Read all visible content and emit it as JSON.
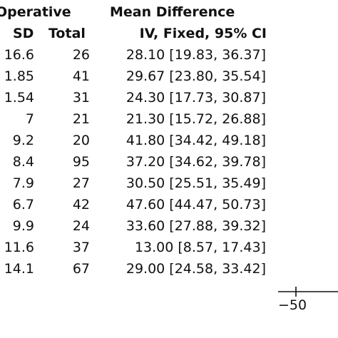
{
  "table": {
    "header_group": "Operative",
    "header_sd": "SD",
    "header_total": "Total",
    "header_md_title": "Mean Difference",
    "header_md_sub": "IV, Fixed, 95% CI"
  },
  "chart_data": {
    "type": "table",
    "columns": [
      "SD",
      "Total",
      "Mean Difference IV, Fixed, 95% CI"
    ],
    "rows": [
      {
        "sd": "16.6",
        "total": "26",
        "md": "28.10 [19.83, 36.37]",
        "mean": 28.1,
        "ci": [
          19.83,
          36.37
        ]
      },
      {
        "sd": "1.85",
        "total": "41",
        "md": "29.67 [23.80, 35.54]",
        "mean": 29.67,
        "ci": [
          23.8,
          35.54
        ]
      },
      {
        "sd": "1.54",
        "total": "31",
        "md": "24.30 [17.73, 30.87]",
        "mean": 24.3,
        "ci": [
          17.73,
          30.87
        ]
      },
      {
        "sd": "7",
        "total": "21",
        "md": "21.30 [15.72, 26.88]",
        "mean": 21.3,
        "ci": [
          15.72,
          26.88
        ]
      },
      {
        "sd": "9.2",
        "total": "20",
        "md": "41.80 [34.42, 49.18]",
        "mean": 41.8,
        "ci": [
          34.42,
          49.18
        ]
      },
      {
        "sd": "8.4",
        "total": "95",
        "md": "37.20 [34.62, 39.78]",
        "mean": 37.2,
        "ci": [
          34.62,
          39.78
        ]
      },
      {
        "sd": "7.9",
        "total": "27",
        "md": "30.50 [25.51, 35.49]",
        "mean": 30.5,
        "ci": [
          25.51,
          35.49
        ]
      },
      {
        "sd": "6.7",
        "total": "42",
        "md": "47.60 [44.47, 50.73]",
        "mean": 47.6,
        "ci": [
          44.47,
          50.73
        ]
      },
      {
        "sd": "9.9",
        "total": "24",
        "md": "33.60 [27.88, 39.32]",
        "mean": 33.6,
        "ci": [
          27.88,
          39.32
        ]
      },
      {
        "sd": "11.6",
        "total": "37",
        "md": "13.00 [8.57, 17.43]",
        "mean": 13.0,
        "ci": [
          8.57,
          17.43
        ]
      },
      {
        "sd": "14.1",
        "total": "67",
        "md": "29.00 [24.58, 33.42]",
        "mean": 29.0,
        "ci": [
          24.58,
          33.42
        ]
      }
    ],
    "x_axis": {
      "ticks": [
        -50
      ],
      "tick_labels": [
        "−50"
      ]
    }
  }
}
